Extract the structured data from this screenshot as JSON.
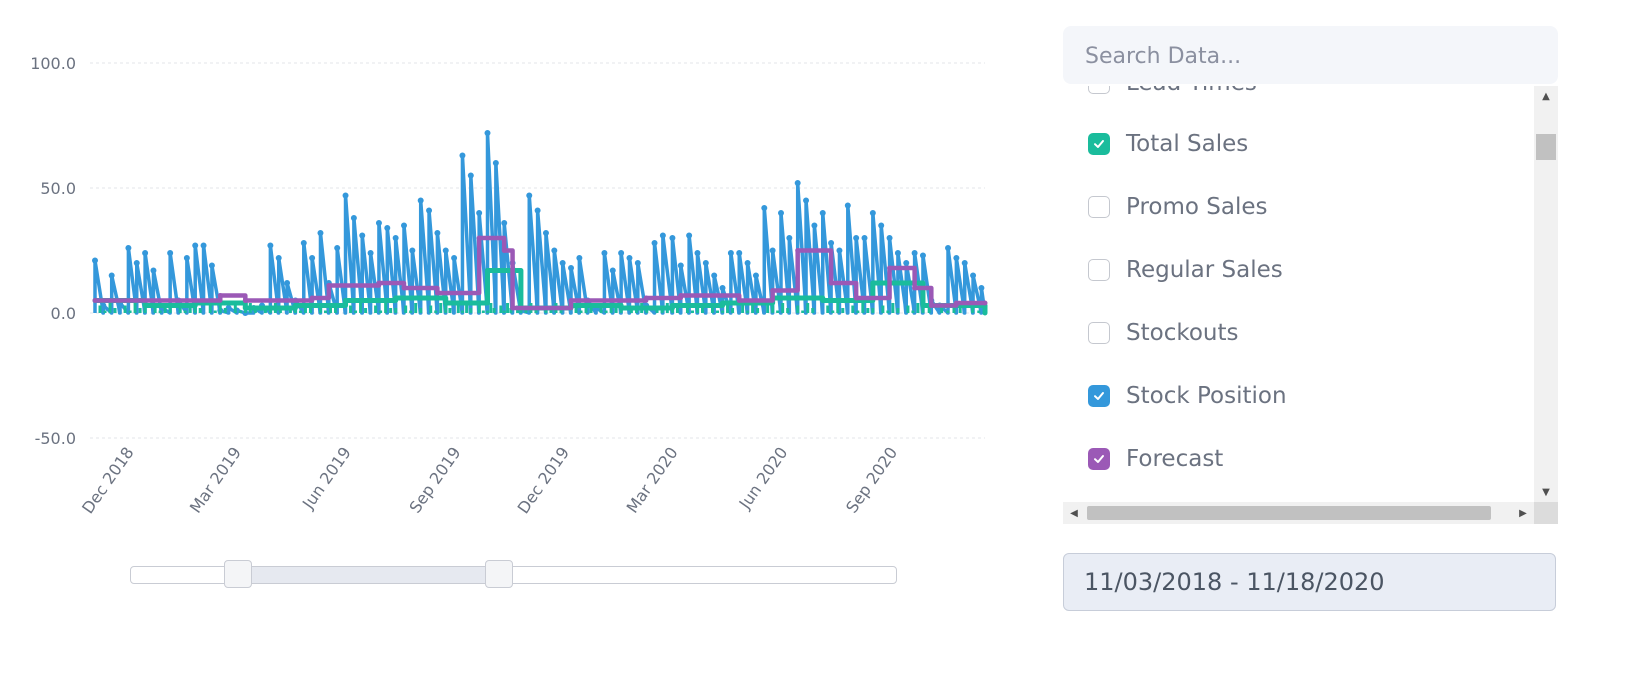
{
  "chart_data": {
    "type": "line",
    "x_tick_labels": [
      "Dec 2018",
      "Mar 2019",
      "Jun 2019",
      "Sep 2019",
      "Dec 2019",
      "Mar 2020",
      "Jun 2020",
      "Sep 2020"
    ],
    "y_tick_labels": [
      "100.0",
      "50.0",
      "0.0",
      "-50.0"
    ],
    "ylim": [
      -50,
      100
    ],
    "xlim": [
      "2018-11-03",
      "2020-11-18"
    ],
    "grid": true,
    "series": [
      {
        "color": "#3498db",
        "points": [
          [
            "2018-11-03",
            21
          ],
          [
            "2018-11-10",
            3
          ],
          [
            "2018-11-17",
            15
          ],
          [
            "2018-11-24",
            4
          ],
          [
            "2018-12-01",
            26
          ],
          [
            "2018-12-08",
            20
          ],
          [
            "2018-12-15",
            24
          ],
          [
            "2018-12-22",
            17
          ],
          [
            "2018-12-29",
            2
          ],
          [
            "2019-01-05",
            24
          ],
          [
            "2019-01-12",
            5
          ],
          [
            "2019-01-19",
            22
          ],
          [
            "2019-01-26",
            27
          ],
          [
            "2019-02-02",
            27
          ],
          [
            "2019-02-09",
            19
          ],
          [
            "2019-02-16",
            1
          ],
          [
            "2019-02-23",
            2
          ],
          [
            "2019-03-02",
            1
          ],
          [
            "2019-03-09",
            0
          ],
          [
            "2019-03-16",
            2
          ],
          [
            "2019-03-23",
            3
          ],
          [
            "2019-03-30",
            27
          ],
          [
            "2019-04-06",
            22
          ],
          [
            "2019-04-13",
            12
          ],
          [
            "2019-04-20",
            5
          ],
          [
            "2019-04-27",
            28
          ],
          [
            "2019-05-04",
            22
          ],
          [
            "2019-05-11",
            32
          ],
          [
            "2019-05-18",
            12
          ],
          [
            "2019-05-25",
            26
          ],
          [
            "2019-06-01",
            47
          ],
          [
            "2019-06-08",
            38
          ],
          [
            "2019-06-15",
            31
          ],
          [
            "2019-06-22",
            24
          ],
          [
            "2019-06-29",
            36
          ],
          [
            "2019-07-06",
            34
          ],
          [
            "2019-07-13",
            30
          ],
          [
            "2019-07-20",
            35
          ],
          [
            "2019-07-27",
            25
          ],
          [
            "2019-08-03",
            45
          ],
          [
            "2019-08-10",
            41
          ],
          [
            "2019-08-17",
            32
          ],
          [
            "2019-08-24",
            25
          ],
          [
            "2019-08-31",
            22
          ],
          [
            "2019-09-07",
            63
          ],
          [
            "2019-09-14",
            55
          ],
          [
            "2019-09-21",
            40
          ],
          [
            "2019-09-28",
            72
          ],
          [
            "2019-10-05",
            60
          ],
          [
            "2019-10-12",
            36
          ],
          [
            "2019-10-19",
            20
          ],
          [
            "2019-10-26",
            1
          ],
          [
            "2019-11-02",
            47
          ],
          [
            "2019-11-09",
            41
          ],
          [
            "2019-11-16",
            32
          ],
          [
            "2019-11-23",
            25
          ],
          [
            "2019-11-30",
            20
          ],
          [
            "2019-12-07",
            18
          ],
          [
            "2019-12-14",
            22
          ],
          [
            "2019-12-21",
            5
          ],
          [
            "2019-12-28",
            2
          ],
          [
            "2020-01-04",
            24
          ],
          [
            "2020-01-11",
            17
          ],
          [
            "2020-01-18",
            24
          ],
          [
            "2020-01-25",
            22
          ],
          [
            "2020-02-01",
            20
          ],
          [
            "2020-02-08",
            3
          ],
          [
            "2020-02-15",
            28
          ],
          [
            "2020-02-22",
            31
          ],
          [
            "2020-03-01",
            30
          ],
          [
            "2020-03-08",
            19
          ],
          [
            "2020-03-15",
            31
          ],
          [
            "2020-03-22",
            24
          ],
          [
            "2020-03-29",
            20
          ],
          [
            "2020-04-05",
            15
          ],
          [
            "2020-04-12",
            10
          ],
          [
            "2020-04-19",
            24
          ],
          [
            "2020-04-26",
            24
          ],
          [
            "2020-05-03",
            20
          ],
          [
            "2020-05-10",
            15
          ],
          [
            "2020-05-17",
            42
          ],
          [
            "2020-05-24",
            25
          ],
          [
            "2020-05-31",
            40
          ],
          [
            "2020-06-07",
            30
          ],
          [
            "2020-06-14",
            52
          ],
          [
            "2020-06-21",
            45
          ],
          [
            "2020-06-28",
            35
          ],
          [
            "2020-07-05",
            40
          ],
          [
            "2020-07-12",
            28
          ],
          [
            "2020-07-19",
            25
          ],
          [
            "2020-07-26",
            43
          ],
          [
            "2020-08-02",
            30
          ],
          [
            "2020-08-09",
            30
          ],
          [
            "2020-08-16",
            40
          ],
          [
            "2020-08-23",
            35
          ],
          [
            "2020-08-30",
            30
          ],
          [
            "2020-09-06",
            24
          ],
          [
            "2020-09-13",
            20
          ],
          [
            "2020-09-20",
            24
          ],
          [
            "2020-09-27",
            23
          ],
          [
            "2020-10-04",
            5
          ],
          [
            "2020-10-11",
            3
          ],
          [
            "2020-10-18",
            26
          ],
          [
            "2020-10-25",
            22
          ],
          [
            "2020-11-01",
            20
          ],
          [
            "2020-11-08",
            15
          ],
          [
            "2020-11-15",
            10
          ]
        ]
      },
      {
        "color": "#1abc9c",
        "points": [
          [
            "2018-11-03",
            5
          ],
          [
            "2018-12-15",
            3
          ],
          [
            "2019-01-26",
            4
          ],
          [
            "2019-03-09",
            2
          ],
          [
            "2019-04-20",
            3
          ],
          [
            "2019-06-01",
            5
          ],
          [
            "2019-07-13",
            6
          ],
          [
            "2019-08-24",
            4
          ],
          [
            "2019-09-28",
            17
          ],
          [
            "2019-10-26",
            2
          ],
          [
            "2019-12-07",
            3
          ],
          [
            "2020-01-18",
            2
          ],
          [
            "2020-03-01",
            3
          ],
          [
            "2020-04-12",
            4
          ],
          [
            "2020-05-24",
            6
          ],
          [
            "2020-07-05",
            5
          ],
          [
            "2020-08-16",
            12
          ],
          [
            "2020-09-27",
            3
          ],
          [
            "2020-11-18",
            0
          ]
        ]
      },
      {
        "color": "#9b59b6",
        "points": [
          [
            "2018-11-03",
            5
          ],
          [
            "2019-02-16",
            7
          ],
          [
            "2019-03-09",
            5
          ],
          [
            "2019-05-04",
            6
          ],
          [
            "2019-05-18",
            11
          ],
          [
            "2019-06-29",
            12
          ],
          [
            "2019-07-20",
            10
          ],
          [
            "2019-08-17",
            8
          ],
          [
            "2019-09-21",
            30
          ],
          [
            "2019-10-12",
            25
          ],
          [
            "2019-10-19",
            2
          ],
          [
            "2019-12-07",
            5
          ],
          [
            "2020-02-08",
            6
          ],
          [
            "2020-03-08",
            7
          ],
          [
            "2020-04-26",
            5
          ],
          [
            "2020-05-24",
            9
          ],
          [
            "2020-06-14",
            25
          ],
          [
            "2020-07-12",
            12
          ],
          [
            "2020-08-02",
            6
          ],
          [
            "2020-08-30",
            18
          ],
          [
            "2020-09-20",
            10
          ],
          [
            "2020-10-04",
            3
          ],
          [
            "2020-10-25",
            4
          ],
          [
            "2020-11-18",
            4
          ]
        ]
      }
    ]
  },
  "range_slider": {
    "start_fraction": 0.14,
    "end_fraction": 0.48
  },
  "search": {
    "placeholder": "Search Data..."
  },
  "series_list": {
    "items": [
      {
        "label": "Lead Times",
        "checked": false,
        "color": ""
      },
      {
        "label": "Total Sales",
        "checked": true,
        "color": "#1abc9c"
      },
      {
        "label": "Promo Sales",
        "checked": false,
        "color": ""
      },
      {
        "label": "Regular Sales",
        "checked": false,
        "color": ""
      },
      {
        "label": "Stockouts",
        "checked": false,
        "color": ""
      },
      {
        "label": "Stock Position",
        "checked": true,
        "color": "#3498db"
      },
      {
        "label": "Forecast",
        "checked": true,
        "color": "#9b59b6"
      }
    ]
  },
  "date_range": {
    "value": "11/03/2018 - 11/18/2020"
  }
}
